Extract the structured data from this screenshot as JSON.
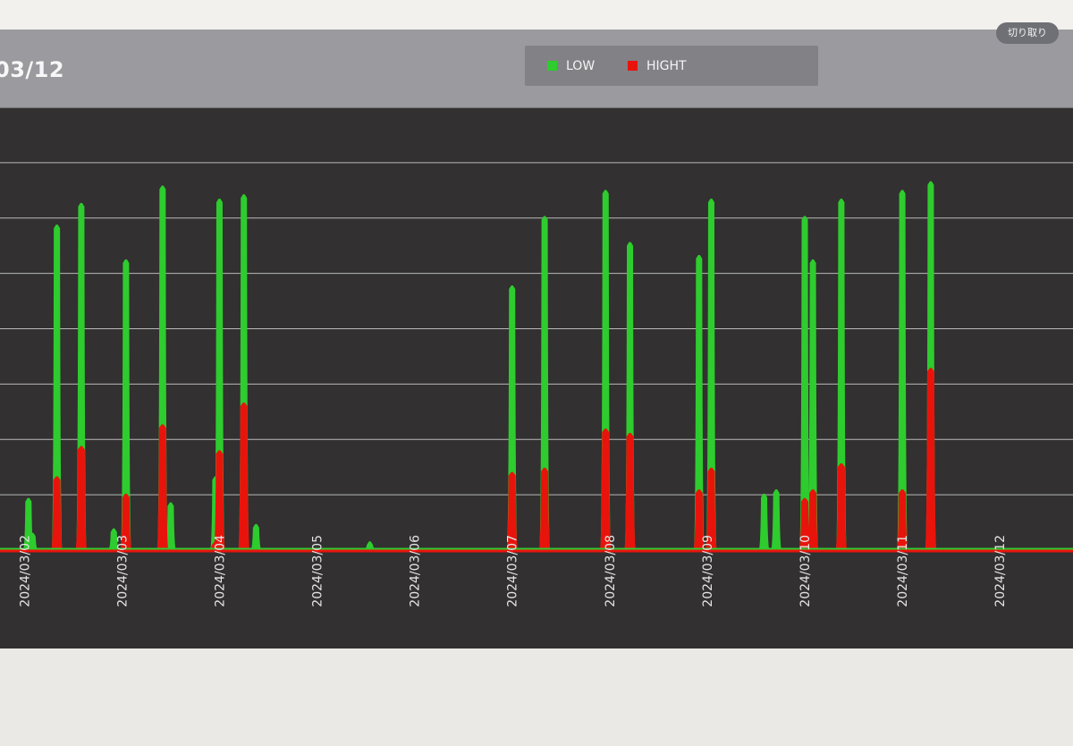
{
  "toolbar": {
    "clip_label": "切り取り"
  },
  "header": {
    "title": "03/12"
  },
  "legend": [
    {
      "label": "LOW",
      "color": "#2ecc2e"
    },
    {
      "label": "HIGHT",
      "color": "#e8140c"
    }
  ],
  "chart_data": {
    "type": "line",
    "x_unit": "date",
    "x_labels": [
      "2024/03/02",
      "2024/03/03",
      "2024/03/04",
      "2024/03/05",
      "2024/03/06",
      "2024/03/07",
      "2024/03/08",
      "2024/03/09",
      "2024/03/10",
      "2024/03/11",
      "2024/03/12"
    ],
    "x_range": [
      "2024/03/01 18:00",
      "2024/03/12 18:00"
    ],
    "y_gridlines": 8,
    "grid": true,
    "legend_position": "top-center",
    "series": [
      {
        "name": "LOW",
        "color": "#2ecc2e",
        "points": [
          [
            "2024/03/02 01:00",
            0.12
          ],
          [
            "2024/03/02 02:30",
            0.04
          ],
          [
            "2024/03/02 08:00",
            0.75
          ],
          [
            "2024/03/02 14:00",
            0.8
          ],
          [
            "2024/03/02 22:00",
            0.05
          ],
          [
            "2024/03/03 01:00",
            0.67
          ],
          [
            "2024/03/03 10:00",
            0.84
          ],
          [
            "2024/03/03 12:00",
            0.11
          ],
          [
            "2024/03/03 23:00",
            0.17
          ],
          [
            "2024/03/04 00:00",
            0.81
          ],
          [
            "2024/03/04 06:00",
            0.82
          ],
          [
            "2024/03/04 09:00",
            0.06
          ],
          [
            "2024/03/05 13:00",
            0.02
          ],
          [
            "2024/03/07 00:00",
            0.61
          ],
          [
            "2024/03/07 08:00",
            0.77
          ],
          [
            "2024/03/07 23:00",
            0.83
          ],
          [
            "2024/03/08 05:00",
            0.71
          ],
          [
            "2024/03/08 22:00",
            0.68
          ],
          [
            "2024/03/09 01:00",
            0.81
          ],
          [
            "2024/03/09 14:00",
            0.13
          ],
          [
            "2024/03/09 17:00",
            0.14
          ],
          [
            "2024/03/10 00:00",
            0.77
          ],
          [
            "2024/03/10 02:00",
            0.67
          ],
          [
            "2024/03/10 09:00",
            0.81
          ],
          [
            "2024/03/11 00:00",
            0.83
          ],
          [
            "2024/03/11 07:00",
            0.85
          ]
        ]
      },
      {
        "name": "HIGHT",
        "color": "#e8140c",
        "points": [
          [
            "2024/03/02 08:00",
            0.17
          ],
          [
            "2024/03/02 14:00",
            0.24
          ],
          [
            "2024/03/03 01:00",
            0.13
          ],
          [
            "2024/03/03 10:00",
            0.29
          ],
          [
            "2024/03/03 23:00",
            0.02
          ],
          [
            "2024/03/04 00:00",
            0.23
          ],
          [
            "2024/03/04 06:00",
            0.34
          ],
          [
            "2024/03/07 00:00",
            0.18
          ],
          [
            "2024/03/07 08:00",
            0.19
          ],
          [
            "2024/03/07 23:00",
            0.28
          ],
          [
            "2024/03/08 05:00",
            0.27
          ],
          [
            "2024/03/08 22:00",
            0.14
          ],
          [
            "2024/03/09 01:00",
            0.19
          ],
          [
            "2024/03/10 00:00",
            0.12
          ],
          [
            "2024/03/10 02:00",
            0.14
          ],
          [
            "2024/03/10 09:00",
            0.2
          ],
          [
            "2024/03/11 00:00",
            0.14
          ],
          [
            "2024/03/11 07:00",
            0.42
          ]
        ]
      }
    ]
  }
}
